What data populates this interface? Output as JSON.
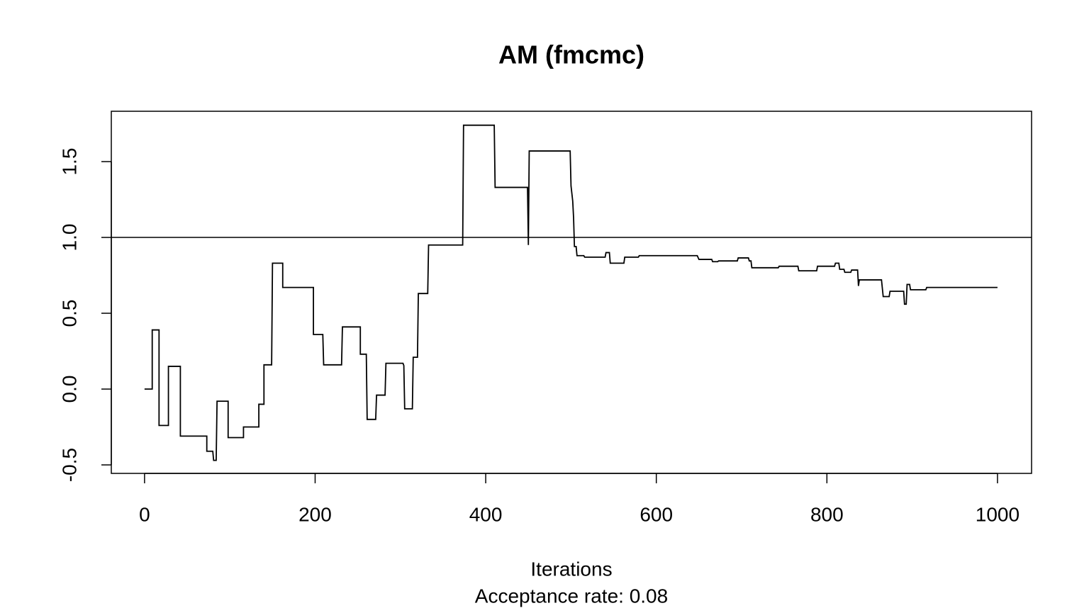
{
  "chart_data": {
    "type": "line",
    "title": "AM (fmcmc)",
    "xlabel": "Iterations",
    "subtitle": "Acceptance rate: 0.08",
    "color": "#000000",
    "hline": 1,
    "xlim": [
      -38.96,
      1039.96
    ],
    "ylim": [
      -0.556,
      1.832
    ],
    "xticks": [
      0,
      200,
      400,
      600,
      800,
      1000
    ],
    "yticks": [
      -0.5,
      {
        "value": 0,
        "label": "0.0"
      },
      0.5,
      {
        "value": 1,
        "label": "1.0"
      },
      1.5
    ],
    "x": [
      0,
      9,
      9,
      17,
      17,
      28,
      28,
      42,
      42,
      73,
      73,
      80,
      81,
      84,
      85,
      98,
      98,
      116,
      116,
      134,
      134,
      140,
      140,
      149,
      150,
      162,
      162,
      198,
      198,
      209,
      210,
      231,
      232,
      253,
      253,
      260,
      261,
      271,
      272,
      282,
      283,
      303,
      304,
      305,
      314,
      315,
      320,
      321,
      332,
      333,
      373,
      374,
      410,
      411,
      449,
      450,
      451,
      499,
      500,
      502,
      503,
      504,
      506,
      507,
      515,
      516,
      540,
      541,
      545,
      546,
      562,
      563,
      579,
      580,
      648,
      650,
      665,
      666,
      672,
      673,
      695,
      696,
      708,
      709,
      711,
      712,
      743,
      744,
      766,
      767,
      788,
      789,
      809,
      810,
      814,
      815,
      820,
      821,
      828,
      829,
      836,
      837,
      838,
      864,
      866,
      873,
      874,
      890,
      891,
      893,
      894,
      897,
      898,
      916,
      917,
      1000
    ],
    "values": [
      0,
      0,
      0.39,
      0.39,
      -0.24,
      -0.24,
      0.15,
      0.15,
      -0.31,
      -0.31,
      -0.41,
      -0.41,
      -0.47,
      -0.47,
      -0.08,
      -0.08,
      -0.32,
      -0.32,
      -0.25,
      -0.25,
      -0.1,
      -0.1,
      0.16,
      0.16,
      0.83,
      0.83,
      0.67,
      0.67,
      0.36,
      0.36,
      0.16,
      0.16,
      0.41,
      0.41,
      0.23,
      0.23,
      -0.2,
      -0.2,
      -0.04,
      -0.04,
      0.17,
      0.17,
      0.155,
      -0.13,
      -0.13,
      0.21,
      0.21,
      0.63,
      0.63,
      0.95,
      0.95,
      1.74,
      1.74,
      1.33,
      1.33,
      0.95,
      1.57,
      1.57,
      1.34,
      1.24,
      1.13,
      0.94,
      0.94,
      0.88,
      0.88,
      0.87,
      0.87,
      0.9,
      0.9,
      0.83,
      0.83,
      0.87,
      0.87,
      0.88,
      0.88,
      0.855,
      0.855,
      0.84,
      0.84,
      0.845,
      0.845,
      0.865,
      0.865,
      0.845,
      0.845,
      0.8,
      0.8,
      0.81,
      0.81,
      0.78,
      0.78,
      0.81,
      0.81,
      0.83,
      0.83,
      0.79,
      0.79,
      0.77,
      0.77,
      0.785,
      0.785,
      0.68,
      0.72,
      0.72,
      0.61,
      0.61,
      0.645,
      0.645,
      0.56,
      0.56,
      0.69,
      0.69,
      0.655,
      0.655,
      0.67,
      0.67
    ]
  }
}
